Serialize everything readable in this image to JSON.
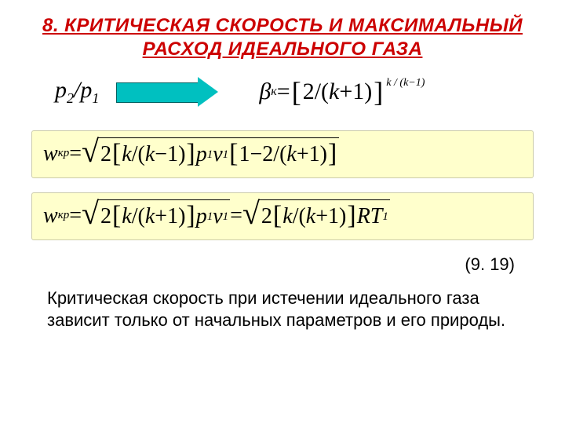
{
  "title": "8. КРИТИЧЕСКАЯ СКОРОСТЬ И МАКСИМАЛЬНЫЙ РАСХОД ИДЕАЛЬНОГО ГАЗА",
  "title_color": "#cc0000",
  "arrow_fill": "#00c0c0",
  "arrow_border": "#006060",
  "highlight_bg": "#ffffcc",
  "ratio": {
    "p": "p",
    "sub2": "2",
    "slash": "/",
    "sub1": "1"
  },
  "beta": {
    "sym": "β",
    "sub": "к",
    "eq": " = ",
    "lbr": "[",
    "two": "2",
    "slash": " / ",
    "lpar": "(",
    "k": "k",
    "plus": " + ",
    "one": "1",
    "rpar": ")",
    "rbr": "]",
    "exp": "k / (k−1)"
  },
  "eq1": {
    "w": "w",
    "sub": "кр",
    "eq": " = ",
    "two": "2",
    "lbr": "[",
    "k": "k",
    "slash": " / ",
    "lpar": "(",
    "minus": " − ",
    "one": "1",
    "rpar": ")",
    "rbr": "]",
    "p": "p",
    "s1": "1",
    "v": "v",
    "lbr2": "[",
    "one2": "1",
    "minus2": " − ",
    "two2": "2",
    "slash2": " / ",
    "lpar2": "(",
    "k2": "k",
    "plus2": " + ",
    "one3": "1",
    "rpar2": ")",
    "rbr2": "]"
  },
  "eq2": {
    "w": "w",
    "sub": "кр",
    "eq": " = ",
    "two": "2",
    "lbr": "[",
    "k": "k",
    "slash": " / ",
    "lpar": "(",
    "plus": " + ",
    "one": "1",
    "rpar": ")",
    "rbr": "]",
    "p": "p",
    "s1": "1",
    "v": "v",
    "eq2": " = ",
    "R": "R",
    "T": "T"
  },
  "eq_ref": "(9. 19)",
  "body": "Критическая скорость при истечении идеального газа зависит только от начальных параметров и его природы."
}
